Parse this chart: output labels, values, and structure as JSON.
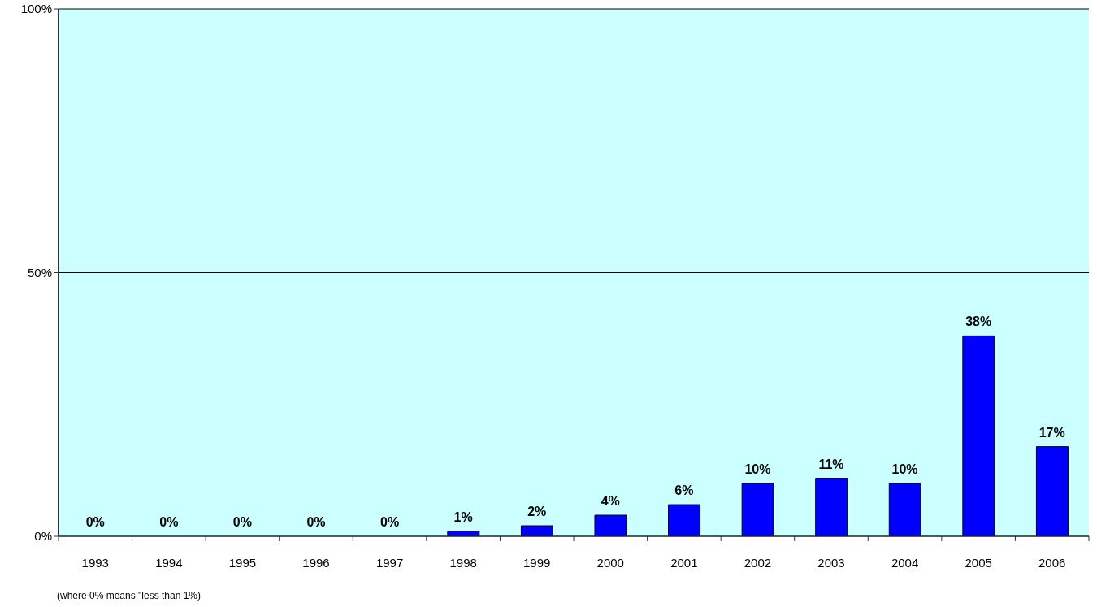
{
  "chart_data": {
    "type": "bar",
    "categories": [
      "1993",
      "1994",
      "1995",
      "1996",
      "1997",
      "1998",
      "1999",
      "2000",
      "2001",
      "2002",
      "2003",
      "2004",
      "2005",
      "2006"
    ],
    "values": [
      0,
      0,
      0,
      0,
      0,
      1,
      2,
      4,
      6,
      10,
      11,
      10,
      38,
      17
    ],
    "value_labels": [
      "0%",
      "0%",
      "0%",
      "0%",
      "0%",
      "1%",
      "2%",
      "4%",
      "6%",
      "10%",
      "11%",
      "10%",
      "38%",
      "17%"
    ],
    "color": "#0000ff",
    "ylim": [
      0,
      100
    ],
    "yticks": [
      {
        "value": 0,
        "label": "0%"
      },
      {
        "value": 50,
        "label": "50%"
      },
      {
        "value": 100,
        "label": "100%"
      }
    ],
    "grid": "y",
    "annotations": [
      "(where 0% means \"less than 1%)"
    ]
  }
}
